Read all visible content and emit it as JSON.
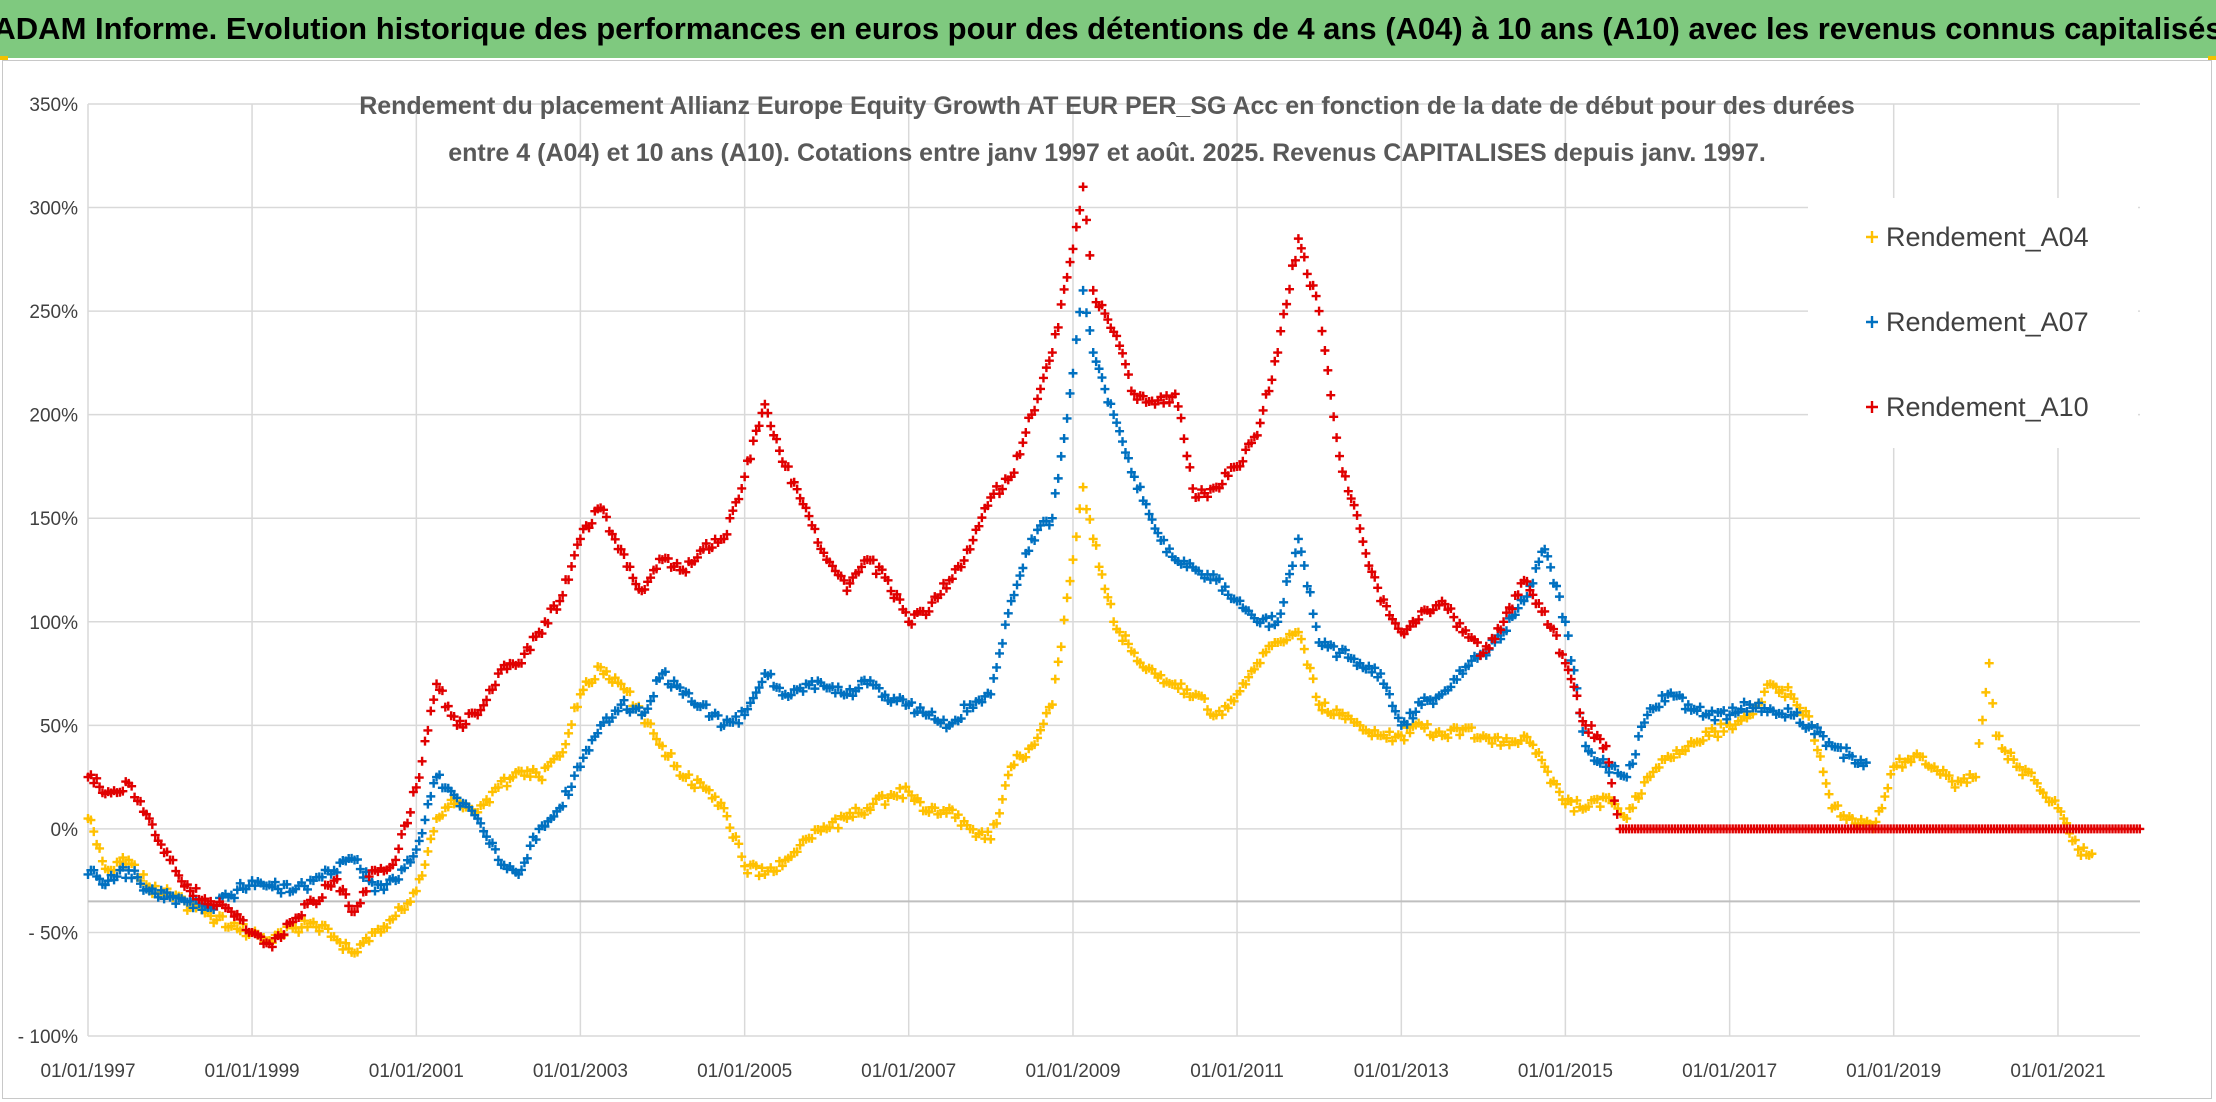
{
  "banner": {
    "title": "ADAM Informe. Evolution historique des performances en euros pour des détentions de 4 ans (A04) à 10 ans (A10) avec les revenus connus capitalisés"
  },
  "colors": {
    "banner_bg": "#7fc97f",
    "A04": "#ffc000",
    "A07": "#0070c0",
    "A10": "#e00000"
  },
  "chart_data": {
    "type": "scatter",
    "marker": "plus",
    "title_lines": [
      "Rendement du placement Allianz Europe Equity Growth AT EUR PER_SG Acc en fonction de la date de début pour des durées",
      "entre 4 (A04) et 10 ans (A10). Cotations entre janv 1997 et août. 2025. Revenus CAPITALISES depuis janv. 1997."
    ],
    "xlim": [
      "1997-01-01",
      "2022-01-01"
    ],
    "ylim": [
      -100,
      350
    ],
    "y_unit": "%",
    "grid": true,
    "legend_position": "top-right",
    "xticks": [
      "01/01/1997",
      "01/01/1999",
      "01/01/2001",
      "01/01/2003",
      "01/01/2005",
      "01/01/2007",
      "01/01/2009",
      "01/01/2011",
      "01/01/2013",
      "01/01/2015",
      "01/01/2017",
      "01/01/2019",
      "01/01/2021"
    ],
    "yticks": [
      "350%",
      "300%",
      "250%",
      "200%",
      "150%",
      "100%",
      "50%",
      "0%",
      "- 50%",
      "- 100%"
    ],
    "series": [
      {
        "name": "Rendement_A04",
        "points": [
          [
            "1997-01-01",
            5
          ],
          [
            "1997-04-01",
            -20
          ],
          [
            "1997-07-01",
            -15
          ],
          [
            "1997-10-01",
            -28
          ],
          [
            "1998-01-01",
            -32
          ],
          [
            "1998-04-01",
            -38
          ],
          [
            "1998-07-01",
            -42
          ],
          [
            "1998-10-01",
            -47
          ],
          [
            "1999-01-01",
            -50
          ],
          [
            "1999-04-01",
            -55
          ],
          [
            "1999-07-01",
            -48
          ],
          [
            "1999-10-01",
            -45
          ],
          [
            "2000-01-01",
            -52
          ],
          [
            "2000-04-01",
            -60
          ],
          [
            "2000-07-01",
            -50
          ],
          [
            "2000-10-01",
            -42
          ],
          [
            "2001-01-01",
            -30
          ],
          [
            "2001-04-01",
            5
          ],
          [
            "2001-07-01",
            15
          ],
          [
            "2001-10-01",
            8
          ],
          [
            "2002-01-01",
            20
          ],
          [
            "2002-04-01",
            28
          ],
          [
            "2002-07-01",
            25
          ],
          [
            "2002-10-01",
            35
          ],
          [
            "2003-01-01",
            65
          ],
          [
            "2003-04-01",
            78
          ],
          [
            "2003-07-01",
            70
          ],
          [
            "2003-10-01",
            55
          ],
          [
            "2004-01-01",
            40
          ],
          [
            "2004-04-01",
            25
          ],
          [
            "2004-07-01",
            20
          ],
          [
            "2004-10-01",
            10
          ],
          [
            "2005-01-01",
            -18
          ],
          [
            "2005-04-01",
            -22
          ],
          [
            "2005-07-01",
            -15
          ],
          [
            "2005-10-01",
            -5
          ],
          [
            "2006-01-01",
            0
          ],
          [
            "2006-04-01",
            5
          ],
          [
            "2006-07-01",
            10
          ],
          [
            "2006-10-01",
            15
          ],
          [
            "2007-01-01",
            18
          ],
          [
            "2007-04-01",
            8
          ],
          [
            "2007-07-01",
            10
          ],
          [
            "2007-10-01",
            0
          ],
          [
            "2008-01-01",
            -5
          ],
          [
            "2008-04-01",
            30
          ],
          [
            "2008-07-01",
            40
          ],
          [
            "2008-10-01",
            60
          ],
          [
            "2009-01-01",
            130
          ],
          [
            "2009-02-15",
            165
          ],
          [
            "2009-04-01",
            140
          ],
          [
            "2009-07-01",
            100
          ],
          [
            "2009-10-01",
            85
          ],
          [
            "2010-01-01",
            75
          ],
          [
            "2010-04-01",
            70
          ],
          [
            "2010-07-01",
            65
          ],
          [
            "2010-10-01",
            55
          ],
          [
            "2011-01-01",
            65
          ],
          [
            "2011-04-01",
            80
          ],
          [
            "2011-07-01",
            90
          ],
          [
            "2011-10-01",
            95
          ],
          [
            "2012-01-01",
            60
          ],
          [
            "2012-04-01",
            55
          ],
          [
            "2012-07-01",
            50
          ],
          [
            "2012-10-01",
            45
          ],
          [
            "2013-01-01",
            45
          ],
          [
            "2013-04-01",
            50
          ],
          [
            "2013-07-01",
            45
          ],
          [
            "2013-10-01",
            48
          ],
          [
            "2014-01-01",
            45
          ],
          [
            "2014-04-01",
            42
          ],
          [
            "2014-07-01",
            45
          ],
          [
            "2014-10-01",
            30
          ],
          [
            "2015-01-01",
            12
          ],
          [
            "2015-04-01",
            10
          ],
          [
            "2015-07-01",
            15
          ],
          [
            "2015-10-01",
            5
          ],
          [
            "2016-01-01",
            25
          ],
          [
            "2016-04-01",
            35
          ],
          [
            "2016-07-01",
            40
          ],
          [
            "2016-10-01",
            45
          ],
          [
            "2017-01-01",
            50
          ],
          [
            "2017-04-01",
            55
          ],
          [
            "2017-07-01",
            70
          ],
          [
            "2017-10-01",
            65
          ],
          [
            "2018-01-01",
            50
          ],
          [
            "2018-04-01",
            10
          ],
          [
            "2018-07-01",
            5
          ],
          [
            "2018-10-01",
            0
          ],
          [
            "2019-01-01",
            30
          ],
          [
            "2019-04-01",
            35
          ],
          [
            "2019-07-01",
            30
          ],
          [
            "2019-10-01",
            20
          ],
          [
            "2020-01-01",
            25
          ],
          [
            "2020-03-01",
            80
          ],
          [
            "2020-04-01",
            45
          ],
          [
            "2020-07-01",
            30
          ],
          [
            "2020-10-01",
            22
          ],
          [
            "2021-01-01",
            10
          ],
          [
            "2021-04-01",
            -10
          ],
          [
            "2021-06-01",
            -12
          ]
        ]
      },
      {
        "name": "Rendement_A07",
        "points": [
          [
            "1997-01-01",
            -22
          ],
          [
            "1997-04-01",
            -25
          ],
          [
            "1997-07-01",
            -20
          ],
          [
            "1997-10-01",
            -30
          ],
          [
            "1998-01-01",
            -33
          ],
          [
            "1998-04-01",
            -35
          ],
          [
            "1998-07-01",
            -38
          ],
          [
            "1998-10-01",
            -32
          ],
          [
            "1999-01-01",
            -25
          ],
          [
            "1999-04-01",
            -28
          ],
          [
            "1999-07-01",
            -30
          ],
          [
            "1999-10-01",
            -25
          ],
          [
            "2000-01-01",
            -20
          ],
          [
            "2000-04-01",
            -15
          ],
          [
            "2000-07-01",
            -30
          ],
          [
            "2000-10-01",
            -25
          ],
          [
            "2001-01-01",
            -10
          ],
          [
            "2001-04-01",
            25
          ],
          [
            "2001-07-01",
            15
          ],
          [
            "2001-10-01",
            5
          ],
          [
            "2002-01-01",
            -15
          ],
          [
            "2002-04-01",
            -22
          ],
          [
            "2002-07-01",
            0
          ],
          [
            "2002-10-01",
            10
          ],
          [
            "2003-01-01",
            30
          ],
          [
            "2003-04-01",
            50
          ],
          [
            "2003-07-01",
            60
          ],
          [
            "2003-10-01",
            55
          ],
          [
            "2004-01-01",
            75
          ],
          [
            "2004-04-01",
            65
          ],
          [
            "2004-07-01",
            60
          ],
          [
            "2004-10-01",
            50
          ],
          [
            "2005-01-01",
            55
          ],
          [
            "2005-04-01",
            75
          ],
          [
            "2005-07-01",
            65
          ],
          [
            "2005-10-01",
            70
          ],
          [
            "2006-01-01",
            68
          ],
          [
            "2006-04-01",
            65
          ],
          [
            "2006-07-01",
            70
          ],
          [
            "2006-10-01",
            62
          ],
          [
            "2007-01-01",
            60
          ],
          [
            "2007-04-01",
            55
          ],
          [
            "2007-07-01",
            50
          ],
          [
            "2007-10-01",
            60
          ],
          [
            "2008-01-01",
            65
          ],
          [
            "2008-04-01",
            110
          ],
          [
            "2008-07-01",
            140
          ],
          [
            "2008-10-01",
            150
          ],
          [
            "2009-01-01",
            220
          ],
          [
            "2009-02-15",
            260
          ],
          [
            "2009-04-01",
            230
          ],
          [
            "2009-07-01",
            200
          ],
          [
            "2009-10-01",
            170
          ],
          [
            "2010-01-01",
            145
          ],
          [
            "2010-04-01",
            130
          ],
          [
            "2010-07-01",
            125
          ],
          [
            "2010-10-01",
            120
          ],
          [
            "2011-01-01",
            110
          ],
          [
            "2011-04-01",
            100
          ],
          [
            "2011-07-01",
            100
          ],
          [
            "2011-10-01",
            140
          ],
          [
            "2012-01-01",
            90
          ],
          [
            "2012-04-01",
            85
          ],
          [
            "2012-07-01",
            80
          ],
          [
            "2012-10-01",
            75
          ],
          [
            "2013-01-01",
            50
          ],
          [
            "2013-04-01",
            60
          ],
          [
            "2013-07-01",
            65
          ],
          [
            "2013-10-01",
            75
          ],
          [
            "2014-01-01",
            85
          ],
          [
            "2014-04-01",
            95
          ],
          [
            "2014-07-01",
            110
          ],
          [
            "2014-10-01",
            135
          ],
          [
            "2015-01-01",
            100
          ],
          [
            "2015-04-01",
            40
          ],
          [
            "2015-07-01",
            30
          ],
          [
            "2015-10-01",
            25
          ],
          [
            "2016-01-01",
            55
          ],
          [
            "2016-04-01",
            65
          ],
          [
            "2016-07-01",
            60
          ],
          [
            "2016-10-01",
            55
          ],
          [
            "2017-01-01",
            55
          ],
          [
            "2017-04-01",
            60
          ],
          [
            "2017-07-01",
            58
          ],
          [
            "2017-10-01",
            55
          ],
          [
            "2018-01-01",
            50
          ],
          [
            "2018-04-01",
            40
          ],
          [
            "2018-07-01",
            35
          ],
          [
            "2018-09-01",
            32
          ]
        ]
      },
      {
        "name": "Rendement_A10",
        "points": [
          [
            "1997-01-01",
            25
          ],
          [
            "1997-04-01",
            18
          ],
          [
            "1997-07-01",
            22
          ],
          [
            "1997-10-01",
            5
          ],
          [
            "1998-01-01",
            -15
          ],
          [
            "1998-04-01",
            -30
          ],
          [
            "1998-07-01",
            -35
          ],
          [
            "1998-10-01",
            -40
          ],
          [
            "1999-01-01",
            -50
          ],
          [
            "1999-04-01",
            -57
          ],
          [
            "1999-07-01",
            -45
          ],
          [
            "1999-10-01",
            -35
          ],
          [
            "2000-01-01",
            -25
          ],
          [
            "2000-04-01",
            -40
          ],
          [
            "2000-07-01",
            -20
          ],
          [
            "2000-10-01",
            -15
          ],
          [
            "2001-01-01",
            20
          ],
          [
            "2001-04-01",
            70
          ],
          [
            "2001-07-01",
            50
          ],
          [
            "2001-10-01",
            55
          ],
          [
            "2002-01-01",
            75
          ],
          [
            "2002-04-01",
            80
          ],
          [
            "2002-07-01",
            95
          ],
          [
            "2002-10-01",
            110
          ],
          [
            "2003-01-01",
            140
          ],
          [
            "2003-04-01",
            155
          ],
          [
            "2003-07-01",
            135
          ],
          [
            "2003-10-01",
            115
          ],
          [
            "2004-01-01",
            130
          ],
          [
            "2004-04-01",
            125
          ],
          [
            "2004-07-01",
            135
          ],
          [
            "2004-10-01",
            140
          ],
          [
            "2005-01-01",
            170
          ],
          [
            "2005-04-01",
            205
          ],
          [
            "2005-07-01",
            175
          ],
          [
            "2005-10-01",
            155
          ],
          [
            "2006-01-01",
            130
          ],
          [
            "2006-04-01",
            115
          ],
          [
            "2006-07-01",
            130
          ],
          [
            "2006-10-01",
            120
          ],
          [
            "2007-01-01",
            100
          ],
          [
            "2007-04-01",
            105
          ],
          [
            "2007-07-01",
            120
          ],
          [
            "2007-10-01",
            135
          ],
          [
            "2008-01-01",
            160
          ],
          [
            "2008-04-01",
            170
          ],
          [
            "2008-07-01",
            200
          ],
          [
            "2008-10-01",
            230
          ],
          [
            "2009-01-01",
            280
          ],
          [
            "2009-02-15",
            310
          ],
          [
            "2009-04-01",
            260
          ],
          [
            "2009-07-01",
            240
          ],
          [
            "2009-10-01",
            210
          ],
          [
            "2010-01-01",
            205
          ],
          [
            "2010-04-01",
            210
          ],
          [
            "2010-07-01",
            160
          ],
          [
            "2010-10-01",
            165
          ],
          [
            "2011-01-01",
            175
          ],
          [
            "2011-04-01",
            190
          ],
          [
            "2011-07-01",
            230
          ],
          [
            "2011-10-01",
            285
          ],
          [
            "2012-01-01",
            250
          ],
          [
            "2012-04-01",
            180
          ],
          [
            "2012-07-01",
            145
          ],
          [
            "2012-10-01",
            110
          ],
          [
            "2013-01-01",
            95
          ],
          [
            "2013-04-01",
            105
          ],
          [
            "2013-07-01",
            110
          ],
          [
            "2013-10-01",
            95
          ],
          [
            "2014-01-01",
            85
          ],
          [
            "2014-04-01",
            100
          ],
          [
            "2014-07-01",
            120
          ],
          [
            "2014-10-01",
            105
          ],
          [
            "2015-01-01",
            80
          ],
          [
            "2015-04-01",
            50
          ],
          [
            "2015-07-01",
            40
          ],
          [
            "2015-09-01",
            0
          ],
          [
            "2016-01-01",
            0
          ],
          [
            "2017-01-01",
            0
          ],
          [
            "2018-01-01",
            0
          ],
          [
            "2019-01-01",
            0
          ],
          [
            "2020-01-01",
            0
          ],
          [
            "2021-01-01",
            0
          ],
          [
            "2021-12-31",
            0
          ]
        ]
      }
    ]
  }
}
